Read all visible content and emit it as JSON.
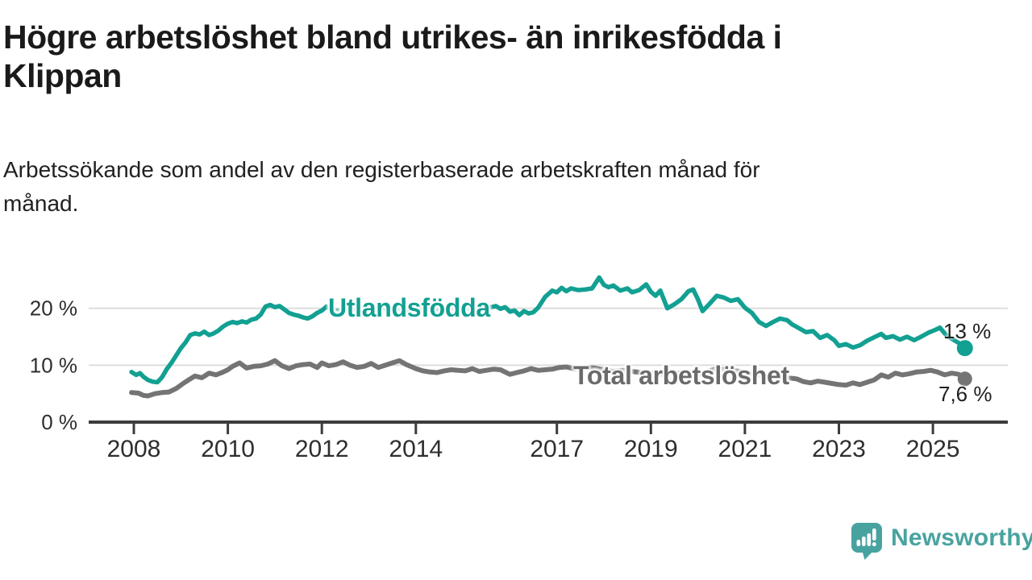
{
  "header": {
    "title_lines": [
      "Högre arbetslöshet bland utrikes- än inrikesfödda i",
      "Klippan"
    ],
    "subtitle_lines": [
      "Arbetssökande som andel av den registerbaserade arbetskraften månad för",
      "månad."
    ]
  },
  "chart_data": {
    "type": "line",
    "unit": "%",
    "x_axis": {
      "ticks": [
        2008,
        2010,
        2012,
        2014,
        2017,
        2019,
        2021,
        2023,
        2025
      ],
      "range": [
        2007.9,
        2026.4
      ]
    },
    "y_axis": {
      "ticks": [
        {
          "value": 0,
          "label": "0 %"
        },
        {
          "value": 10,
          "label": "10 %"
        },
        {
          "value": 20,
          "label": "20 %"
        }
      ],
      "range": [
        0,
        27
      ],
      "grid": true
    },
    "legend_position": "inline-labels",
    "series": [
      {
        "name": "Utlandsfödda",
        "color": "#12a092",
        "end_label": "13 %",
        "end_value": 13.0,
        "points": [
          [
            2007.95,
            8.8
          ],
          [
            2008.05,
            8.3
          ],
          [
            2008.13,
            8.6
          ],
          [
            2008.2,
            8.0
          ],
          [
            2008.3,
            7.4
          ],
          [
            2008.4,
            7.1
          ],
          [
            2008.5,
            7.0
          ],
          [
            2008.6,
            7.9
          ],
          [
            2008.7,
            9.3
          ],
          [
            2008.8,
            10.4
          ],
          [
            2008.9,
            11.7
          ],
          [
            2009.0,
            13.0
          ],
          [
            2009.1,
            14.0
          ],
          [
            2009.2,
            15.3
          ],
          [
            2009.3,
            15.6
          ],
          [
            2009.4,
            15.4
          ],
          [
            2009.5,
            15.9
          ],
          [
            2009.6,
            15.3
          ],
          [
            2009.7,
            15.6
          ],
          [
            2009.8,
            16.1
          ],
          [
            2009.9,
            16.8
          ],
          [
            2010.0,
            17.3
          ],
          [
            2010.1,
            17.6
          ],
          [
            2010.2,
            17.4
          ],
          [
            2010.3,
            17.7
          ],
          [
            2010.4,
            17.5
          ],
          [
            2010.5,
            18.0
          ],
          [
            2010.6,
            18.2
          ],
          [
            2010.7,
            18.9
          ],
          [
            2010.8,
            20.3
          ],
          [
            2010.9,
            20.6
          ],
          [
            2011.0,
            20.2
          ],
          [
            2011.1,
            20.4
          ],
          [
            2011.2,
            19.8
          ],
          [
            2011.3,
            19.2
          ],
          [
            2011.4,
            18.9
          ],
          [
            2011.5,
            18.7
          ],
          [
            2011.6,
            18.4
          ],
          [
            2011.7,
            18.2
          ],
          [
            2011.8,
            18.6
          ],
          [
            2011.9,
            19.2
          ],
          [
            2012.0,
            19.6
          ],
          [
            2012.1,
            20.3
          ],
          [
            2012.2,
            19.8
          ],
          [
            2012.35,
            19.5
          ],
          [
            2012.5,
            20.0
          ],
          [
            2012.65,
            19.6
          ],
          [
            2012.8,
            19.9
          ],
          [
            2013.0,
            19.8
          ],
          [
            2013.2,
            20.2
          ],
          [
            2013.4,
            19.7
          ],
          [
            2013.6,
            20.0
          ],
          [
            2013.8,
            19.6
          ],
          [
            2014.0,
            20.0
          ],
          [
            2014.2,
            19.6
          ],
          [
            2014.4,
            19.9
          ],
          [
            2014.6,
            19.7
          ],
          [
            2014.8,
            20.1
          ],
          [
            2015.0,
            19.7
          ],
          [
            2015.2,
            20.0
          ],
          [
            2015.4,
            19.6
          ],
          [
            2015.55,
            20.1
          ],
          [
            2015.7,
            20.4
          ],
          [
            2015.8,
            19.9
          ],
          [
            2015.9,
            20.2
          ],
          [
            2016.0,
            19.4
          ],
          [
            2016.1,
            19.6
          ],
          [
            2016.2,
            18.8
          ],
          [
            2016.3,
            19.5
          ],
          [
            2016.4,
            19.1
          ],
          [
            2016.5,
            19.3
          ],
          [
            2016.6,
            20.1
          ],
          [
            2016.75,
            22.0
          ],
          [
            2016.9,
            23.1
          ],
          [
            2017.0,
            22.8
          ],
          [
            2017.1,
            23.6
          ],
          [
            2017.2,
            23.0
          ],
          [
            2017.3,
            23.5
          ],
          [
            2017.45,
            23.2
          ],
          [
            2017.6,
            23.3
          ],
          [
            2017.75,
            23.5
          ],
          [
            2017.9,
            25.4
          ],
          [
            2018.0,
            24.1
          ],
          [
            2018.1,
            23.7
          ],
          [
            2018.2,
            24.0
          ],
          [
            2018.35,
            23.1
          ],
          [
            2018.5,
            23.5
          ],
          [
            2018.6,
            22.8
          ],
          [
            2018.75,
            23.2
          ],
          [
            2018.9,
            24.2
          ],
          [
            2019.0,
            22.9
          ],
          [
            2019.1,
            22.2
          ],
          [
            2019.2,
            23.1
          ],
          [
            2019.35,
            20.0
          ],
          [
            2019.5,
            20.7
          ],
          [
            2019.65,
            21.6
          ],
          [
            2019.8,
            23.0
          ],
          [
            2019.9,
            23.3
          ],
          [
            2020.0,
            21.6
          ],
          [
            2020.1,
            19.5
          ],
          [
            2020.25,
            20.8
          ],
          [
            2020.4,
            22.2
          ],
          [
            2020.55,
            21.9
          ],
          [
            2020.7,
            21.3
          ],
          [
            2020.85,
            21.6
          ],
          [
            2021.0,
            20.1
          ],
          [
            2021.15,
            19.2
          ],
          [
            2021.3,
            17.6
          ],
          [
            2021.45,
            16.9
          ],
          [
            2021.6,
            17.6
          ],
          [
            2021.75,
            18.2
          ],
          [
            2021.9,
            17.9
          ],
          [
            2022.0,
            17.2
          ],
          [
            2022.15,
            16.5
          ],
          [
            2022.3,
            15.8
          ],
          [
            2022.45,
            16.0
          ],
          [
            2022.6,
            14.8
          ],
          [
            2022.75,
            15.3
          ],
          [
            2022.9,
            14.4
          ],
          [
            2023.0,
            13.4
          ],
          [
            2023.15,
            13.7
          ],
          [
            2023.3,
            13.1
          ],
          [
            2023.45,
            13.5
          ],
          [
            2023.6,
            14.3
          ],
          [
            2023.75,
            14.9
          ],
          [
            2023.9,
            15.5
          ],
          [
            2024.0,
            14.8
          ],
          [
            2024.15,
            15.1
          ],
          [
            2024.3,
            14.5
          ],
          [
            2024.45,
            15.0
          ],
          [
            2024.6,
            14.4
          ],
          [
            2024.75,
            15.0
          ],
          [
            2024.9,
            15.7
          ],
          [
            2025.05,
            16.2
          ],
          [
            2025.15,
            16.6
          ],
          [
            2025.3,
            15.1
          ],
          [
            2025.45,
            14.4
          ],
          [
            2025.55,
            13.9
          ],
          [
            2025.68,
            13.0
          ]
        ]
      },
      {
        "name": "Total arbetslöshet",
        "color": "#747474",
        "end_label": "7,6 %",
        "end_value": 7.6,
        "points": [
          [
            2007.95,
            5.2
          ],
          [
            2008.1,
            5.1
          ],
          [
            2008.2,
            4.7
          ],
          [
            2008.3,
            4.6
          ],
          [
            2008.45,
            5.0
          ],
          [
            2008.6,
            5.2
          ],
          [
            2008.75,
            5.3
          ],
          [
            2008.9,
            5.9
          ],
          [
            2009.05,
            6.8
          ],
          [
            2009.2,
            7.6
          ],
          [
            2009.3,
            8.1
          ],
          [
            2009.45,
            7.8
          ],
          [
            2009.6,
            8.6
          ],
          [
            2009.75,
            8.3
          ],
          [
            2009.9,
            8.8
          ],
          [
            2010.0,
            9.2
          ],
          [
            2010.1,
            9.8
          ],
          [
            2010.25,
            10.4
          ],
          [
            2010.4,
            9.5
          ],
          [
            2010.55,
            9.8
          ],
          [
            2010.7,
            9.9
          ],
          [
            2010.85,
            10.2
          ],
          [
            2011.0,
            10.8
          ],
          [
            2011.15,
            9.9
          ],
          [
            2011.3,
            9.4
          ],
          [
            2011.45,
            9.9
          ],
          [
            2011.6,
            10.1
          ],
          [
            2011.75,
            10.2
          ],
          [
            2011.9,
            9.6
          ],
          [
            2012.0,
            10.4
          ],
          [
            2012.15,
            9.9
          ],
          [
            2012.3,
            10.1
          ],
          [
            2012.45,
            10.6
          ],
          [
            2012.6,
            10.0
          ],
          [
            2012.75,
            9.6
          ],
          [
            2012.9,
            9.8
          ],
          [
            2013.05,
            10.3
          ],
          [
            2013.2,
            9.6
          ],
          [
            2013.35,
            10.0
          ],
          [
            2013.5,
            10.4
          ],
          [
            2013.65,
            10.8
          ],
          [
            2013.8,
            10.1
          ],
          [
            2014.0,
            9.4
          ],
          [
            2014.15,
            9.0
          ],
          [
            2014.3,
            8.8
          ],
          [
            2014.45,
            8.7
          ],
          [
            2014.6,
            9.0
          ],
          [
            2014.75,
            9.2
          ],
          [
            2014.9,
            9.1
          ],
          [
            2015.05,
            9.0
          ],
          [
            2015.2,
            9.4
          ],
          [
            2015.35,
            8.9
          ],
          [
            2015.5,
            9.1
          ],
          [
            2015.65,
            9.3
          ],
          [
            2015.8,
            9.2
          ],
          [
            2016.0,
            8.4
          ],
          [
            2016.15,
            8.7
          ],
          [
            2016.3,
            9.0
          ],
          [
            2016.45,
            9.4
          ],
          [
            2016.6,
            9.1
          ],
          [
            2016.75,
            9.2
          ],
          [
            2016.9,
            9.3
          ],
          [
            2017.05,
            9.6
          ],
          [
            2017.2,
            9.7
          ],
          [
            2017.35,
            9.4
          ],
          [
            2017.5,
            9.3
          ],
          [
            2017.65,
            9.6
          ],
          [
            2017.8,
            9.5
          ],
          [
            2018.0,
            9.2
          ],
          [
            2018.2,
            8.9
          ],
          [
            2018.4,
            9.1
          ],
          [
            2018.6,
            8.9
          ],
          [
            2018.8,
            8.7
          ],
          [
            2019.0,
            8.6
          ],
          [
            2019.2,
            8.4
          ],
          [
            2019.4,
            8.7
          ],
          [
            2019.6,
            8.6
          ],
          [
            2019.8,
            8.4
          ],
          [
            2020.0,
            8.3
          ],
          [
            2020.2,
            8.9
          ],
          [
            2020.4,
            9.4
          ],
          [
            2020.6,
            9.2
          ],
          [
            2020.8,
            9.0
          ],
          [
            2021.0,
            8.8
          ],
          [
            2021.2,
            8.4
          ],
          [
            2021.4,
            8.1
          ],
          [
            2021.6,
            7.9
          ],
          [
            2021.8,
            7.8
          ],
          [
            2022.0,
            7.7
          ],
          [
            2022.1,
            7.6
          ],
          [
            2022.25,
            7.1
          ],
          [
            2022.4,
            6.9
          ],
          [
            2022.55,
            7.2
          ],
          [
            2022.7,
            7.0
          ],
          [
            2022.85,
            6.8
          ],
          [
            2023.0,
            6.6
          ],
          [
            2023.15,
            6.5
          ],
          [
            2023.3,
            6.9
          ],
          [
            2023.45,
            6.6
          ],
          [
            2023.6,
            7.0
          ],
          [
            2023.75,
            7.4
          ],
          [
            2023.9,
            8.3
          ],
          [
            2024.05,
            7.9
          ],
          [
            2024.2,
            8.6
          ],
          [
            2024.35,
            8.3
          ],
          [
            2024.5,
            8.5
          ],
          [
            2024.65,
            8.8
          ],
          [
            2024.8,
            8.9
          ],
          [
            2024.95,
            9.1
          ],
          [
            2025.1,
            8.8
          ],
          [
            2025.25,
            8.3
          ],
          [
            2025.4,
            8.6
          ],
          [
            2025.55,
            8.4
          ],
          [
            2025.68,
            7.6
          ]
        ]
      }
    ],
    "colors": {
      "grid": "#dedede",
      "axis": "#3c3c3c",
      "tick_text": "#2e2e2e"
    }
  },
  "footer": {
    "brand": "Newsworthy",
    "brand_color": "#48a3a0"
  }
}
